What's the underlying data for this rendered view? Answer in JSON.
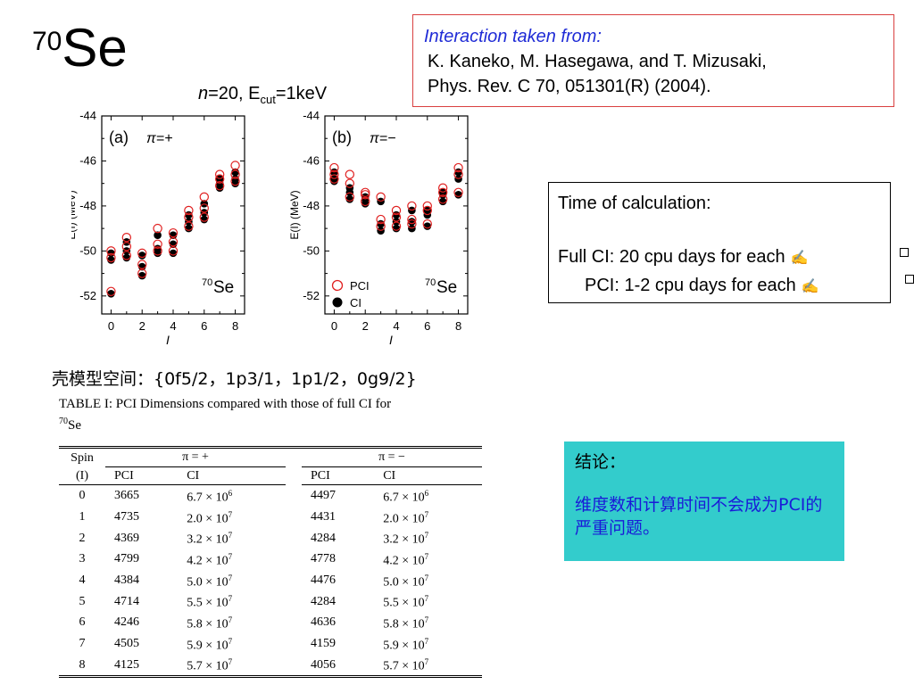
{
  "slide": {
    "title_sup": "70",
    "title_main": "Se",
    "plot_param_n": "n",
    "plot_param_rest": "=20, E",
    "plot_param_sub": "cut",
    "plot_param_tail": "=1keV"
  },
  "reference": {
    "heading": "Interaction taken from:",
    "line1": "K. Kaneko, M. Hasegawa, and T. Mizusaki,",
    "line2": "Phys. Rev. C 70, 051301(R) (2004)."
  },
  "timing": {
    "heading": "Time of calculation:",
    "full_ci": "Full CI: 20 cpu days for each",
    "pci": "PCI: 1-2 cpu days for each",
    "hand_icon": "writing-hand-icon"
  },
  "model_space": "壳模型空间：{0f5/2，1p3/1，1p1/2，0g9/2}",
  "table": {
    "caption_text": "TABLE I: PCI Dimensions compared with those of full CI for",
    "caption_sup": "70",
    "caption_tail": "Se",
    "spin_header": "Spin",
    "spin_sub": "(I)",
    "group_pos": "π = +",
    "group_neg": "π = −",
    "col_pci": "PCI",
    "col_ci": "CI",
    "rows": [
      [
        "0",
        "3665",
        "6.7 × 10",
        "6",
        "4497",
        "6.7 × 10",
        "6"
      ],
      [
        "1",
        "4735",
        "2.0 × 10",
        "7",
        "4431",
        "2.0 × 10",
        "7"
      ],
      [
        "2",
        "4369",
        "3.2 × 10",
        "7",
        "4284",
        "3.2 × 10",
        "7"
      ],
      [
        "3",
        "4799",
        "4.2 × 10",
        "7",
        "4778",
        "4.2 × 10",
        "7"
      ],
      [
        "4",
        "4384",
        "5.0 × 10",
        "7",
        "4476",
        "5.0 × 10",
        "7"
      ],
      [
        "5",
        "4714",
        "5.5 × 10",
        "7",
        "4284",
        "5.5 × 10",
        "7"
      ],
      [
        "6",
        "4246",
        "5.8 × 10",
        "7",
        "4636",
        "5.8 × 10",
        "7"
      ],
      [
        "7",
        "4505",
        "5.9 × 10",
        "7",
        "4159",
        "5.9 × 10",
        "7"
      ],
      [
        "8",
        "4125",
        "5.7 × 10",
        "7",
        "4056",
        "5.7 × 10",
        "7"
      ]
    ]
  },
  "conclusion": {
    "heading": "结论：",
    "body": "维度数和计算时间不会成为PCI的严重问题。"
  },
  "chart_data": [
    {
      "type": "scatter",
      "panel_label": "(a)",
      "parity": "π=+",
      "nucleus_sup": "70",
      "nucleus": "Se",
      "xlabel": "I",
      "ylabel": "E(I) (MeV)",
      "xlim": [
        -0.6,
        8.6
      ],
      "ylim": [
        -52.8,
        -44
      ],
      "xticks": [
        "0",
        "2",
        "4",
        "6",
        "8"
      ],
      "yticks": [
        "-44",
        "-46",
        "-48",
        "-50",
        "-52"
      ],
      "series": [
        {
          "name": "PCI",
          "marker": "open-circle",
          "color": "#e02020",
          "points": [
            [
              0,
              -50.0
            ],
            [
              0,
              -50.3
            ],
            [
              0,
              -51.8
            ],
            [
              1,
              -49.4
            ],
            [
              1,
              -49.8
            ],
            [
              1,
              -50.2
            ],
            [
              2,
              -50.1
            ],
            [
              2,
              -50.6
            ],
            [
              2,
              -51.0
            ],
            [
              3,
              -49.0
            ],
            [
              3,
              -49.7
            ],
            [
              3,
              -50.0
            ],
            [
              4,
              -49.2
            ],
            [
              4,
              -49.6
            ],
            [
              4,
              -50.0
            ],
            [
              5,
              -48.2
            ],
            [
              5,
              -48.5
            ],
            [
              5,
              -48.9
            ],
            [
              6,
              -47.6
            ],
            [
              6,
              -48.1
            ],
            [
              6,
              -48.5
            ],
            [
              7,
              -46.6
            ],
            [
              7,
              -46.8
            ],
            [
              7,
              -47.1
            ],
            [
              8,
              -46.2
            ],
            [
              8,
              -46.6
            ],
            [
              8,
              -46.9
            ]
          ]
        },
        {
          "name": "CI",
          "marker": "filled-circle",
          "color": "#000000",
          "points": [
            [
              0,
              -50.1
            ],
            [
              0,
              -50.4
            ],
            [
              0,
              -51.9
            ],
            [
              1,
              -49.6
            ],
            [
              1,
              -50.0
            ],
            [
              1,
              -50.3
            ],
            [
              2,
              -50.2
            ],
            [
              2,
              -50.7
            ],
            [
              2,
              -51.1
            ],
            [
              3,
              -49.3
            ],
            [
              3,
              -49.9
            ],
            [
              3,
              -50.1
            ],
            [
              4,
              -49.3
            ],
            [
              4,
              -49.7
            ],
            [
              4,
              -50.1
            ],
            [
              5,
              -48.4
            ],
            [
              5,
              -48.7
            ],
            [
              5,
              -49.0
            ],
            [
              6,
              -47.9
            ],
            [
              6,
              -48.3
            ],
            [
              6,
              -48.6
            ],
            [
              7,
              -46.8
            ],
            [
              7,
              -47.0
            ],
            [
              7,
              -47.2
            ],
            [
              8,
              -46.5
            ],
            [
              8,
              -46.8
            ],
            [
              8,
              -47.0
            ]
          ]
        }
      ]
    },
    {
      "type": "scatter",
      "panel_label": "(b)",
      "parity": "π=−",
      "nucleus_sup": "70",
      "nucleus": "Se",
      "xlabel": "I",
      "ylabel": "E(I) (MeV)",
      "xlim": [
        -0.6,
        8.6
      ],
      "ylim": [
        -52.8,
        -44
      ],
      "xticks": [
        "0",
        "2",
        "4",
        "6",
        "8"
      ],
      "yticks": [
        "-44",
        "-46",
        "-48",
        "-50",
        "-52"
      ],
      "legend": [
        "PCI",
        "CI"
      ],
      "series": [
        {
          "name": "PCI",
          "marker": "open-circle",
          "color": "#e02020",
          "points": [
            [
              0,
              -46.3
            ],
            [
              0,
              -46.6
            ],
            [
              0,
              -46.8
            ],
            [
              1,
              -46.6
            ],
            [
              1,
              -47.0
            ],
            [
              1,
              -47.6
            ],
            [
              2,
              -47.4
            ],
            [
              2,
              -47.8
            ],
            [
              2,
              -47.5
            ],
            [
              3,
              -48.6
            ],
            [
              3,
              -48.9
            ],
            [
              3,
              -47.6
            ],
            [
              4,
              -48.2
            ],
            [
              4,
              -48.5
            ],
            [
              4,
              -48.9
            ],
            [
              5,
              -48.0
            ],
            [
              5,
              -48.6
            ],
            [
              5,
              -48.8
            ],
            [
              6,
              -48.0
            ],
            [
              6,
              -48.2
            ],
            [
              6,
              -48.8
            ],
            [
              7,
              -47.2
            ],
            [
              7,
              -47.4
            ],
            [
              7,
              -47.7
            ],
            [
              8,
              -46.3
            ],
            [
              8,
              -46.6
            ],
            [
              8,
              -47.4
            ]
          ]
        },
        {
          "name": "CI",
          "marker": "filled-circle",
          "color": "#000000",
          "points": [
            [
              0,
              -46.5
            ],
            [
              0,
              -46.8
            ],
            [
              0,
              -46.9
            ],
            [
              1,
              -47.2
            ],
            [
              1,
              -47.4
            ],
            [
              1,
              -47.7
            ],
            [
              2,
              -47.6
            ],
            [
              2,
              -47.9
            ],
            [
              2,
              -47.7
            ],
            [
              3,
              -48.8
            ],
            [
              3,
              -49.1
            ],
            [
              3,
              -47.8
            ],
            [
              4,
              -48.4
            ],
            [
              4,
              -48.7
            ],
            [
              4,
              -49.0
            ],
            [
              5,
              -48.2
            ],
            [
              5,
              -48.7
            ],
            [
              5,
              -49.0
            ],
            [
              6,
              -48.2
            ],
            [
              6,
              -48.4
            ],
            [
              6,
              -48.9
            ],
            [
              7,
              -47.4
            ],
            [
              7,
              -47.5
            ],
            [
              7,
              -47.8
            ],
            [
              8,
              -46.5
            ],
            [
              8,
              -46.8
            ],
            [
              8,
              -47.5
            ]
          ]
        }
      ]
    }
  ],
  "colors": {
    "ref_border": "#d94040",
    "ref_heading": "#1f2bd6",
    "conclusion_bg": "#33cccc",
    "conclusion_text": "#1a1ad8",
    "marker_open": "#e02020",
    "marker_filled": "#000000"
  }
}
